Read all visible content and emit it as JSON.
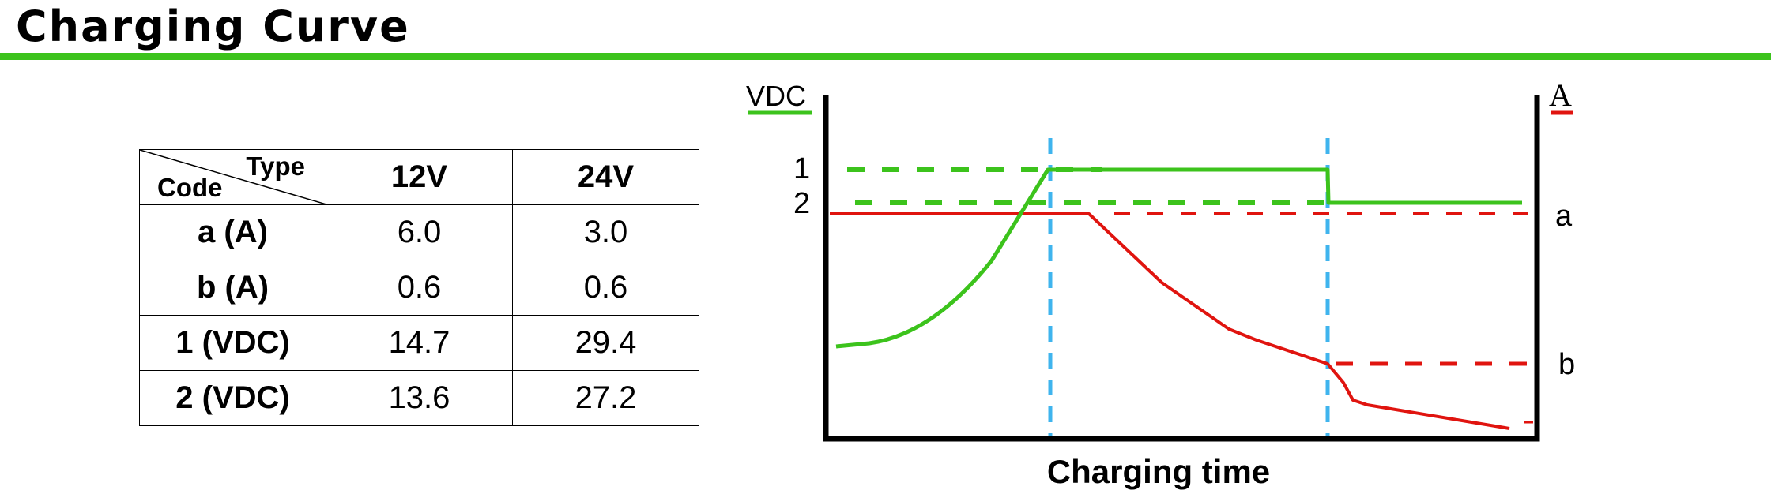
{
  "header": {
    "title": "Charging Curve",
    "accent_color": "#3cc31c"
  },
  "table": {
    "corner_top": "Type",
    "corner_bottom": "Code",
    "columns": [
      "12V",
      "24V"
    ],
    "rows": [
      {
        "code": "a (A)",
        "values": [
          "6.0",
          "3.0"
        ]
      },
      {
        "code": "b (A)",
        "values": [
          "0.6",
          "0.6"
        ]
      },
      {
        "code": "1 (VDC)",
        "values": [
          "14.7",
          "29.4"
        ]
      },
      {
        "code": "2 (VDC)",
        "values": [
          "13.6",
          "27.2"
        ]
      }
    ]
  },
  "diagram": {
    "left_axis_label": "VDC",
    "right_axis_label": "A",
    "x_axis_label": "Charging time",
    "level_labels": {
      "v1": "1",
      "v2": "2",
      "a": "a",
      "b": "b"
    },
    "voltage_color": "#3cc31c",
    "current_color": "#e0140f",
    "marker_color": "#3fb4ee"
  }
}
